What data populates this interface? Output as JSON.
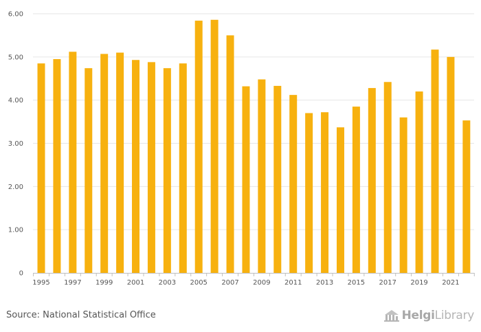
{
  "chart_data": {
    "type": "bar",
    "title": "",
    "xlabel": "",
    "ylabel": "",
    "ylim": [
      0,
      6
    ],
    "grid": true,
    "bar_color": "#f7b10f",
    "grid_color": "#e6e6e6",
    "axis_color": "#bfbfbf",
    "y_ticks": [
      "0",
      "1.00",
      "2.00",
      "3.00",
      "4.00",
      "5.00",
      "6.00"
    ],
    "x_tick_labels": [
      "1995",
      "1997",
      "1999",
      "2001",
      "2003",
      "2005",
      "2007",
      "2009",
      "2011",
      "2013",
      "2015",
      "2017",
      "2019",
      "2021"
    ],
    "categories": [
      "1995",
      "1996",
      "1997",
      "1998",
      "1999",
      "2000",
      "2001",
      "2002",
      "2003",
      "2004",
      "2005",
      "2006",
      "2007",
      "2008",
      "2009",
      "2010",
      "2011",
      "2012",
      "2013",
      "2014",
      "2015",
      "2016",
      "2017",
      "2018",
      "2019",
      "2020",
      "2021",
      "2022"
    ],
    "values": [
      4.85,
      4.95,
      5.12,
      4.74,
      5.07,
      5.1,
      4.93,
      4.88,
      4.74,
      4.85,
      5.84,
      5.86,
      5.5,
      4.32,
      4.48,
      4.33,
      4.12,
      3.7,
      3.72,
      3.37,
      3.85,
      4.28,
      4.42,
      3.6,
      4.2,
      5.17,
      5.0,
      3.53
    ]
  },
  "footer": {
    "source": "Source: National Statistical Office",
    "logo_icon": "helgi-building-icon",
    "logo_brand": "Helgi",
    "logo_suffix": "Library"
  }
}
